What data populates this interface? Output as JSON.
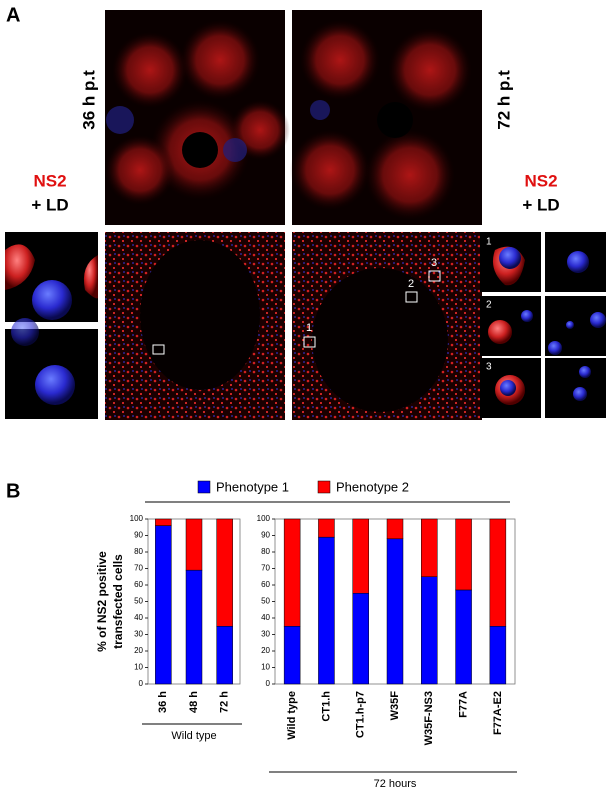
{
  "panel_a": {
    "label": "A",
    "time_left": "36 h p.t",
    "time_right": "72 h p.t",
    "stain_left": {
      "protein": "NS2",
      "marker": "+ LD"
    },
    "stain_right": {
      "protein": "NS2",
      "marker": "+ LD"
    },
    "roi_labels": [
      "1",
      "2",
      "3"
    ]
  },
  "panel_b": {
    "label": "B"
  },
  "chart_data": [
    {
      "type": "bar",
      "stacked": true,
      "ylabel": [
        "% of NS2 positive",
        "transfected cells"
      ],
      "categories": [
        "36 h",
        "48 h",
        "72 h"
      ],
      "series": [
        {
          "name": "Phenotype 1",
          "color": "#0000ff",
          "values": [
            96,
            69,
            35
          ]
        },
        {
          "name": "Phenotype 2",
          "color": "#ff0000",
          "values": [
            4,
            31,
            65
          ]
        }
      ],
      "ylim": [
        0,
        100
      ],
      "yticks": [
        0,
        10,
        20,
        30,
        40,
        50,
        60,
        70,
        80,
        90,
        100
      ],
      "group_label": "Wild type"
    },
    {
      "type": "bar",
      "stacked": true,
      "categories": [
        "Wild type",
        "CT1.h",
        "CT1.h-p7",
        "W35F",
        "W35F-NS3",
        "F77A",
        "F77A-E2"
      ],
      "series": [
        {
          "color": "#0000ff",
          "values": [
            35,
            89,
            55,
            88,
            65,
            57,
            35
          ]
        },
        {
          "color": "#ff0000",
          "values": [
            65,
            11,
            45,
            12,
            35,
            43,
            65
          ]
        }
      ],
      "ylim": [
        0,
        100
      ],
      "yticks": [
        0,
        10,
        20,
        30,
        40,
        50,
        60,
        70,
        80,
        90,
        100
      ],
      "group_label": "72 hours"
    }
  ]
}
